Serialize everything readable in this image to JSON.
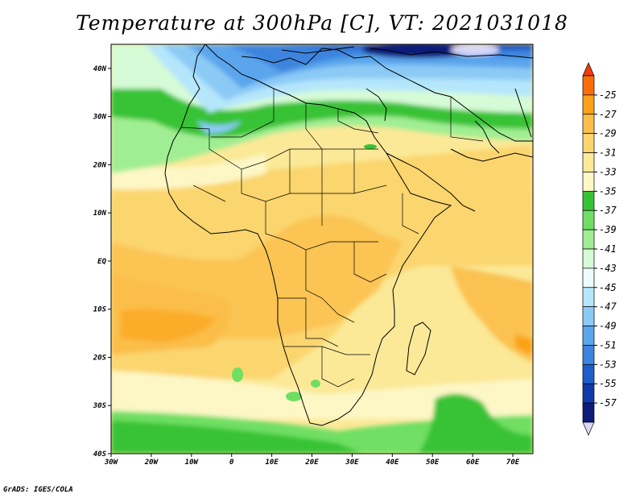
{
  "title": "Temperature at 300hPa [C], VT: 2021031018",
  "credit": "GrADS: IGES/COLA",
  "map": {
    "lon_range": [
      -30,
      75
    ],
    "lat_range": [
      -40,
      45
    ],
    "lon_ticks": [
      {
        "value": -30,
        "label": "30W"
      },
      {
        "value": -20,
        "label": "20W"
      },
      {
        "value": -10,
        "label": "10W"
      },
      {
        "value": 0,
        "label": "0"
      },
      {
        "value": 10,
        "label": "10E"
      },
      {
        "value": 20,
        "label": "20E"
      },
      {
        "value": 30,
        "label": "30E"
      },
      {
        "value": 40,
        "label": "40E"
      },
      {
        "value": 50,
        "label": "50E"
      },
      {
        "value": 60,
        "label": "60E"
      },
      {
        "value": 70,
        "label": "70E"
      }
    ],
    "lat_ticks": [
      {
        "value": 40,
        "label": "40N"
      },
      {
        "value": 30,
        "label": "30N"
      },
      {
        "value": 20,
        "label": "20N"
      },
      {
        "value": 10,
        "label": "10N"
      },
      {
        "value": 0,
        "label": "EQ"
      },
      {
        "value": -10,
        "label": "10S"
      },
      {
        "value": -20,
        "label": "20S"
      },
      {
        "value": -30,
        "label": "30S"
      },
      {
        "value": -40,
        "label": "40S"
      }
    ]
  },
  "colorbar": {
    "labels": [
      "-25",
      "-27",
      "-29",
      "-31",
      "-33",
      "-35",
      "-37",
      "-39",
      "-41",
      "-43",
      "-45",
      "-47",
      "-49",
      "-51",
      "-53",
      "-55",
      "-57"
    ],
    "colors_top_to_bottom": [
      "#f03c0c",
      "#fa6e0a",
      "#fba119",
      "#fbbe4a",
      "#fbd56e",
      "#fbe998",
      "#fdf7c6",
      "#37c236",
      "#6fdf63",
      "#a0ee93",
      "#d6fbd7",
      "#ecfcfd",
      "#b5e6fb",
      "#8ccaf6",
      "#5aa5ec",
      "#3c84df",
      "#1d5ecb",
      "#0f3aaa",
      "#0c1d7a",
      "#d8d8f8"
    ]
  }
}
